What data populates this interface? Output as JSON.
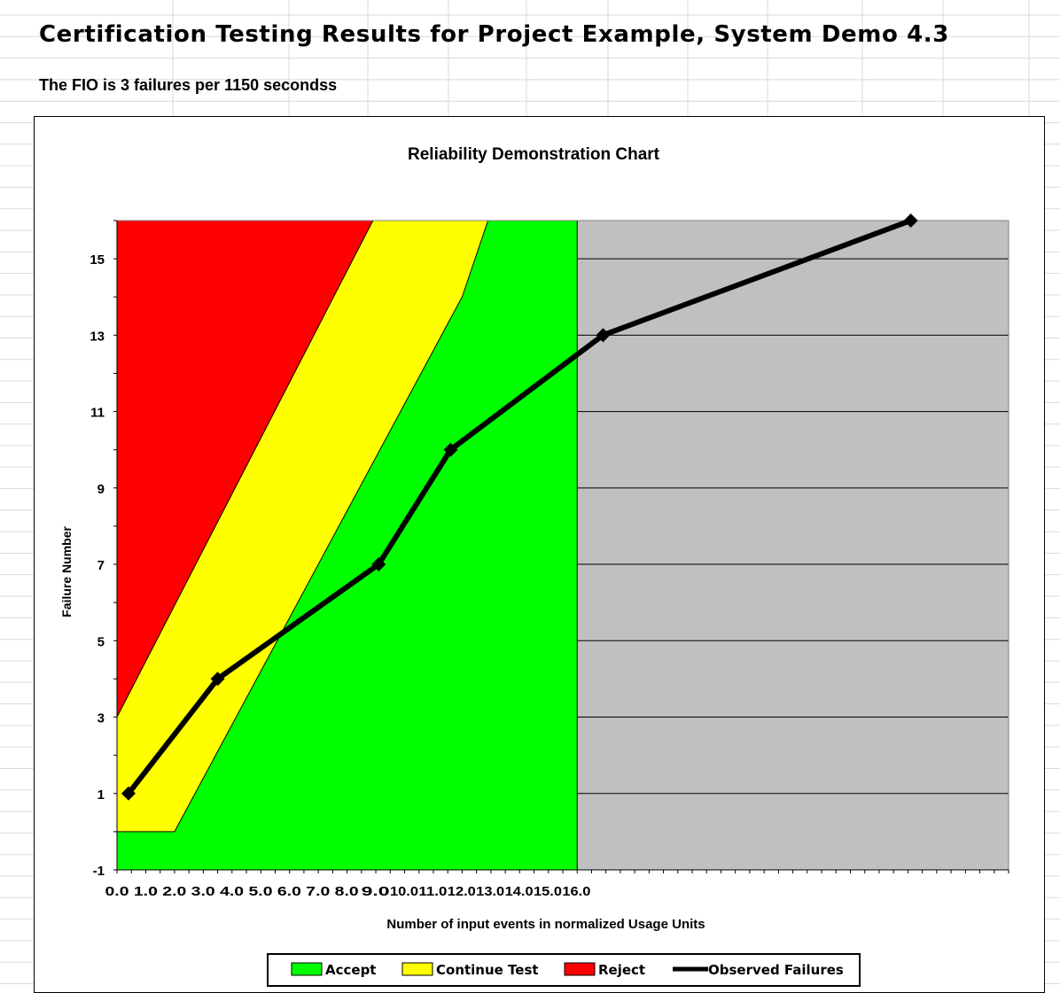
{
  "page": {
    "title": "Certification Testing Results for Project Example, System Demo 4.3",
    "subtitle": "The FIO is 3 failures per 1150 secondss"
  },
  "chart_data": {
    "type": "line",
    "title": "Reliability Demonstration Chart",
    "xlabel": "Number of input events in normalized Usage Units",
    "ylabel": "Failure Number",
    "xlim": [
      0,
      31
    ],
    "ylim": [
      -1,
      16
    ],
    "x_tick_labels": [
      "0.0",
      "1.0",
      "2.0",
      "3.0",
      "4.0",
      "5.0",
      "6.0",
      "7.0",
      "8.0",
      "9.0",
      "10.0",
      "11.0",
      "12.0",
      "13.0",
      "14.0",
      "15.0",
      "16.0"
    ],
    "y_tick_labels": [
      "15",
      "13",
      "11",
      "9",
      "7",
      "5",
      "3",
      "1",
      "-1"
    ],
    "y_ticks": [
      15,
      13,
      11,
      9,
      7,
      5,
      3,
      1,
      -1
    ],
    "regions": [
      {
        "name": "Reject",
        "color": "#ff0000",
        "boundary": [
          [
            0,
            3
          ],
          [
            8.9,
            16
          ]
        ]
      },
      {
        "name": "Continue Test",
        "color": "#ffff00",
        "boundary": [
          [
            0,
            0
          ],
          [
            2.0,
            0
          ],
          [
            12.0,
            14
          ],
          [
            12.9,
            16
          ]
        ]
      },
      {
        "name": "Accept",
        "color": "#00ff00",
        "x_max": 16.0
      },
      {
        "name": "",
        "color": "#c0c0c0",
        "x_min": 16.0
      }
    ],
    "series": [
      {
        "name": "Observed Failures",
        "color": "#000000",
        "points": [
          [
            0.4,
            1
          ],
          [
            3.5,
            4
          ],
          [
            9.1,
            7
          ],
          [
            11.6,
            10
          ],
          [
            16.9,
            13
          ],
          [
            27.6,
            16
          ]
        ]
      }
    ],
    "legend": {
      "position": "bottom",
      "entries": [
        {
          "label": "Accept",
          "color": "#00ff00",
          "kind": "box"
        },
        {
          "label": "Continue Test",
          "color": "#ffff00",
          "kind": "box"
        },
        {
          "label": "Reject",
          "color": "#ff0000",
          "kind": "box"
        },
        {
          "label": "Observed Failures",
          "color": "#000000",
          "kind": "line"
        }
      ]
    },
    "grid": true
  }
}
